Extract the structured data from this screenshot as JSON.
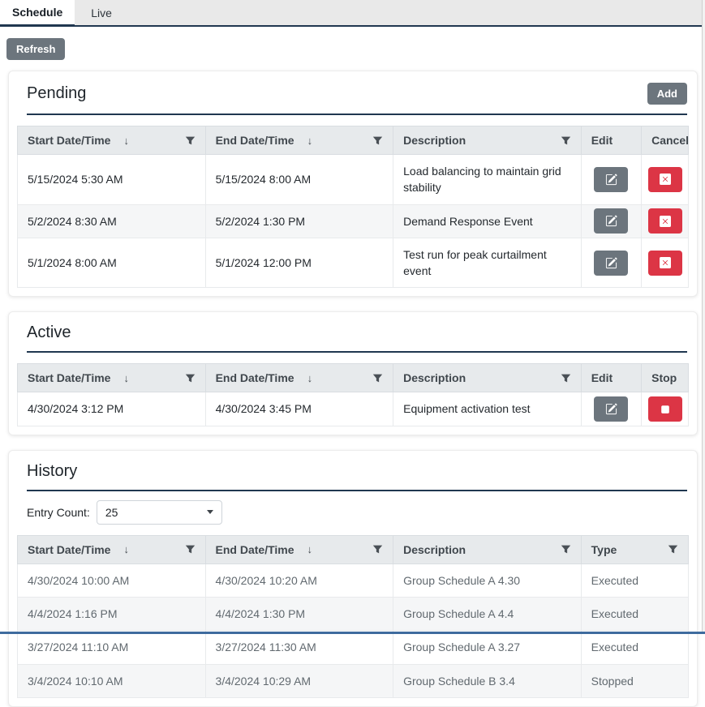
{
  "tabs": [
    {
      "label": "Schedule",
      "active": true
    },
    {
      "label": "Live",
      "active": false
    }
  ],
  "toolbar": {
    "refresh_label": "Refresh"
  },
  "colors": {
    "accent_navy": "#203750",
    "button_gray": "#6c757d",
    "danger_red": "#dc3545",
    "header_bg": "#e7eaec",
    "stripe_bg": "#f5f6f7"
  },
  "icons": {
    "sort_descending": "↓",
    "filter": "funnel",
    "edit": "pencil-square",
    "cancel": "x-square",
    "stop": "stop-square",
    "select_caret": "caret-down"
  },
  "pending": {
    "title": "Pending",
    "add_label": "Add",
    "columns": [
      {
        "label": "Start Date/Time",
        "sort": true,
        "filter": true
      },
      {
        "label": "End Date/Time",
        "sort": true,
        "filter": true
      },
      {
        "label": "Description",
        "sort": false,
        "filter": true
      },
      {
        "label": "Edit",
        "sort": false,
        "filter": false
      },
      {
        "label": "Cancel",
        "sort": false,
        "filter": false
      }
    ],
    "rows": [
      {
        "start": "5/15/2024 5:30 AM",
        "end": "5/15/2024 8:00 AM",
        "description": "Load balancing to maintain grid stability"
      },
      {
        "start": "5/2/2024 8:30 AM",
        "end": "5/2/2024 1:30 PM",
        "description": "Demand Response Event"
      },
      {
        "start": "5/1/2024 8:00 AM",
        "end": "5/1/2024 12:00 PM",
        "description": "Test run for peak curtailment event"
      }
    ]
  },
  "active": {
    "title": "Active",
    "columns": [
      {
        "label": "Start Date/Time",
        "sort": true,
        "filter": true
      },
      {
        "label": "End Date/Time",
        "sort": true,
        "filter": true
      },
      {
        "label": "Description",
        "sort": false,
        "filter": true
      },
      {
        "label": "Edit",
        "sort": false,
        "filter": false
      },
      {
        "label": "Stop",
        "sort": false,
        "filter": false
      }
    ],
    "rows": [
      {
        "start": "4/30/2024 3:12 PM",
        "end": "4/30/2024 3:45 PM",
        "description": "Equipment activation test"
      }
    ]
  },
  "history": {
    "title": "History",
    "entry_count_label": "Entry Count:",
    "entry_count_value": "25",
    "columns": [
      {
        "label": "Start Date/Time",
        "sort": true,
        "filter": true
      },
      {
        "label": "End Date/Time",
        "sort": true,
        "filter": true
      },
      {
        "label": "Description",
        "sort": false,
        "filter": true
      },
      {
        "label": "Type",
        "sort": false,
        "filter": true
      }
    ],
    "rows": [
      {
        "start": "4/30/2024 10:00 AM",
        "end": "4/30/2024 10:20 AM",
        "description": "Group Schedule A 4.30",
        "type": "Executed"
      },
      {
        "start": "4/4/2024 1:16 PM",
        "end": "4/4/2024 1:30 PM",
        "description": "Group Schedule A 4.4",
        "type": "Executed"
      },
      {
        "start": "3/27/2024 11:10 AM",
        "end": "3/27/2024 11:30 AM",
        "description": "Group Schedule A 3.27",
        "type": "Executed"
      },
      {
        "start": "3/4/2024 10:10 AM",
        "end": "3/4/2024 10:29 AM",
        "description": "Group Schedule B 3.4",
        "type": "Stopped"
      }
    ]
  }
}
